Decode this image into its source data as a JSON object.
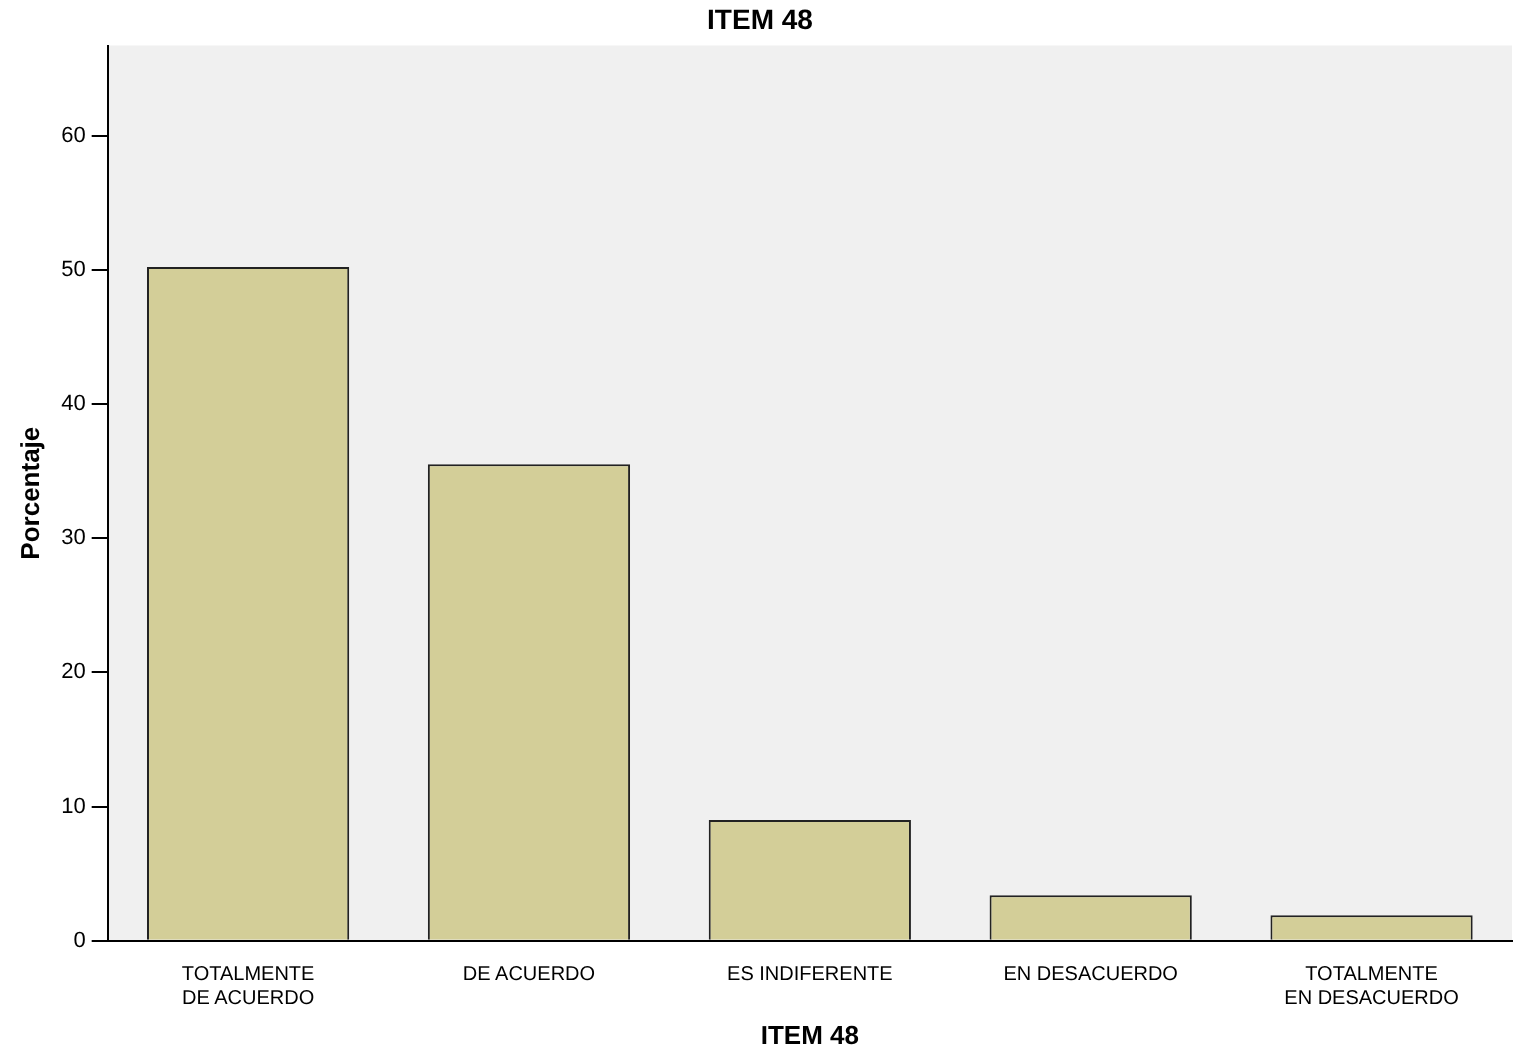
{
  "chart_data": {
    "type": "bar",
    "title": "ITEM 48",
    "xlabel": "ITEM 48",
    "ylabel": "Porcentaje",
    "categories": [
      "TOTALMENTE DE ACUERDO",
      "DE ACUERDO",
      "ES INDIFERENTE",
      "EN DESACUERDO",
      "TOTALMENTE EN DESACUERDO"
    ],
    "values": [
      50.2,
      35.5,
      9.0,
      3.4,
      1.9
    ],
    "color": "#d3ce98",
    "ylim": [
      0,
      66.7
    ],
    "yticks": [
      0,
      10,
      20,
      30,
      40,
      50,
      60
    ],
    "grid": false,
    "legend": false
  }
}
